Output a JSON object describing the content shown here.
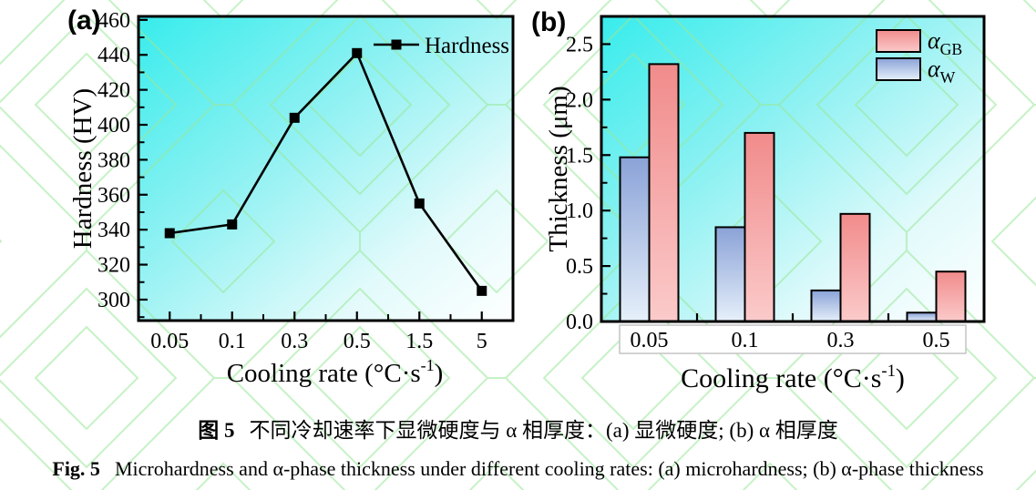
{
  "figure": {
    "panel_a_label": "(a)",
    "panel_b_label": "(b)",
    "caption_zh": {
      "label": "图 5",
      "text": "不同冷却速率下显微硬度与 α 相厚度：(a) 显微硬度; (b) α 相厚度"
    },
    "caption_en": {
      "label": "Fig. 5",
      "text": "Microhardness and α-phase thickness under different cooling rates: (a) microhardness; (b) α-phase thickness"
    }
  },
  "colors": {
    "plot_bg_stops": [
      "#38ECEC",
      "#8FF1F2",
      "#E2FAFB",
      "#FEFFFF"
    ],
    "bar_gb_stops": [
      "#F18B8B",
      "#FBCACA"
    ],
    "bar_w_stops": [
      "#8AA2D7",
      "#E6F0FA"
    ],
    "watermark_green": "#97E897",
    "series_line": "#000000",
    "axis_color": "#000000",
    "xlabel_box_border": "#C4C4C4"
  },
  "chart_data": [
    {
      "type": "line",
      "panel": "(a)",
      "categories": [
        "0.05",
        "0.1",
        "0.3",
        "0.5",
        "1.5",
        "5"
      ],
      "series": [
        {
          "name": "Hardness",
          "values": [
            338,
            343,
            404,
            441,
            355,
            305
          ]
        }
      ],
      "xlabel": "Cooling rate (°C·s⁻¹)",
      "ylabel": "Hardness (HV)",
      "ylim": [
        288,
        462
      ],
      "yticks": [
        300,
        320,
        340,
        360,
        380,
        400,
        420,
        440,
        460
      ],
      "legend_position": "top-right-inside",
      "marker": "filled-square",
      "grid": false
    },
    {
      "type": "bar",
      "panel": "(b)",
      "categories": [
        "0.05",
        "0.1",
        "0.3",
        "0.5"
      ],
      "series": [
        {
          "name": "α_GB",
          "values": [
            2.32,
            1.7,
            0.97,
            0.45
          ]
        },
        {
          "name": "α_W",
          "values": [
            1.48,
            0.85,
            0.28,
            0.08
          ]
        }
      ],
      "xlabel": "Cooling rate (°C·s⁻¹)",
      "ylabel": "Thickness (μm)",
      "ylim": [
        0,
        2.75
      ],
      "yticks": [
        0.0,
        0.5,
        1.0,
        1.5,
        2.0,
        2.5
      ],
      "legend_position": "top-right-inside",
      "grid": false
    }
  ]
}
